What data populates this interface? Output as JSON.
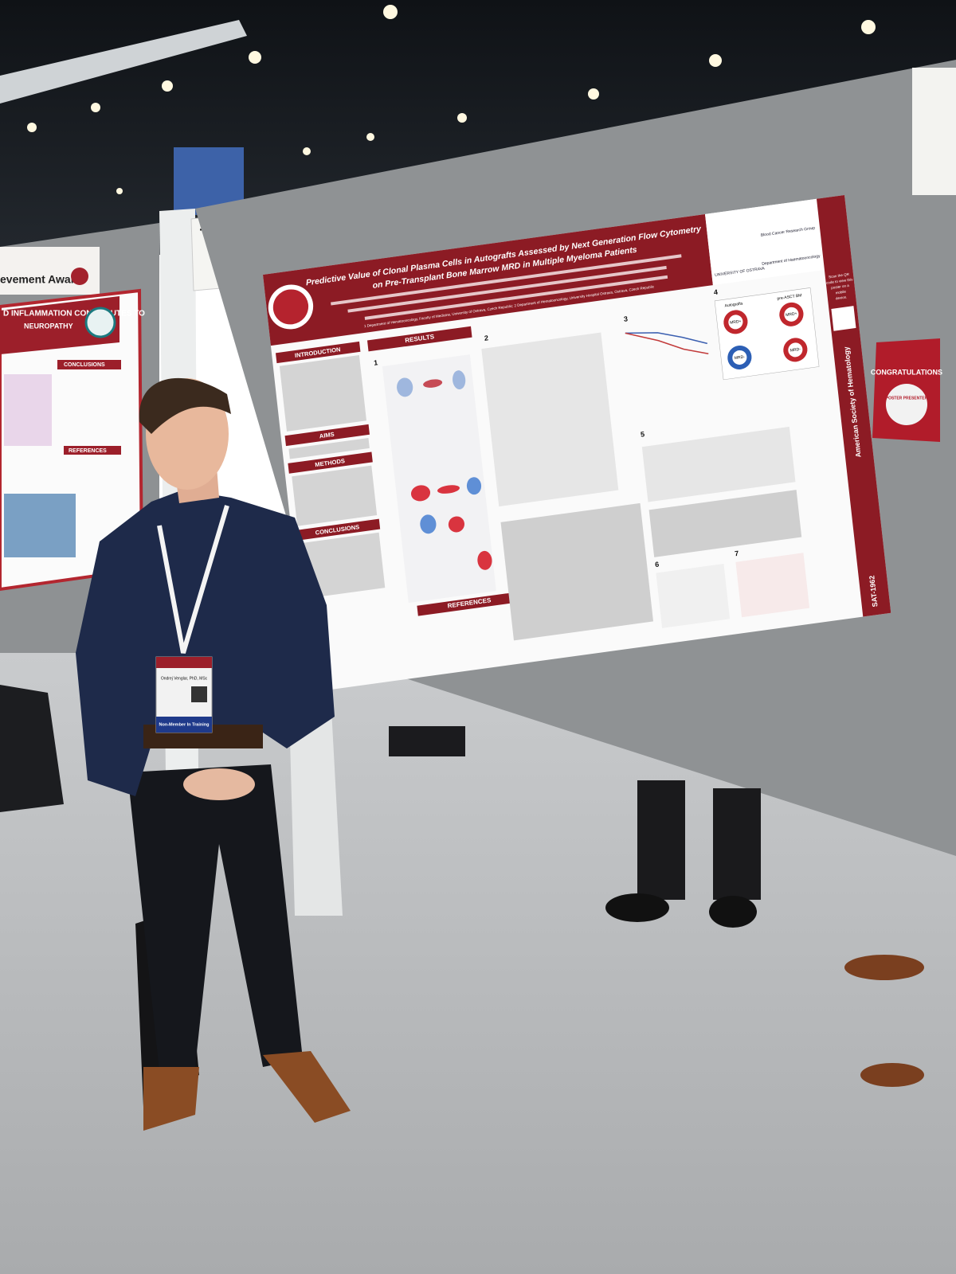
{
  "board_number": "1962",
  "award_sign": "evement Award",
  "left_poster": {
    "title_lines": [
      "D INFLAMMATION CONTRIBUTES TO",
      "NEUROPATHY"
    ],
    "sections": [
      "CONCLUSIONS",
      "REFERENCES"
    ]
  },
  "poster": {
    "title_lines": [
      "Predictive Value of Clonal Plasma Cells in Autografts Assessed by Next Generation Flow Cytometry",
      "on Pre-Transplant Bone Marrow MRD in Multiple Myeloma Patients"
    ],
    "affiliation": "1 Department of Hematooncology, Faculty of Medicine, University of Ostrava, Czech Republic; 2 Department of Hematooncology, University Hospital Ostrava, Ostrava, Czech Republic",
    "left_sections": [
      "INTRODUCTION",
      "AIMS",
      "METHODS",
      "CONCLUSIONS"
    ],
    "results_header": "RESULTS",
    "references_header": "REFERENCES",
    "figure_numbers": [
      "1",
      "2",
      "3",
      "4",
      "5",
      "6",
      "7"
    ],
    "logos": [
      "UNIVERSITY OF OSTRAVA",
      "Blood Cancer Research Group",
      "Department of Haematooncology"
    ],
    "diagram": {
      "left": "Autografts",
      "right": "pre-ASCT BM",
      "neg": "MRD-",
      "pos": "MRD+"
    },
    "side_banner": "American Society of Hematology",
    "poster_id": "SAT-1962",
    "qr_text": [
      "Scan the QR",
      "code to view this",
      "poster on a",
      "mobile",
      "device."
    ]
  },
  "badge": {
    "name": "Ondrej Venglar, PhD, MSc",
    "type": "Non-Member In Training"
  },
  "congrats": {
    "title": "CONGRATULATIONS",
    "subtitle": "POSTER PRESENTER"
  }
}
